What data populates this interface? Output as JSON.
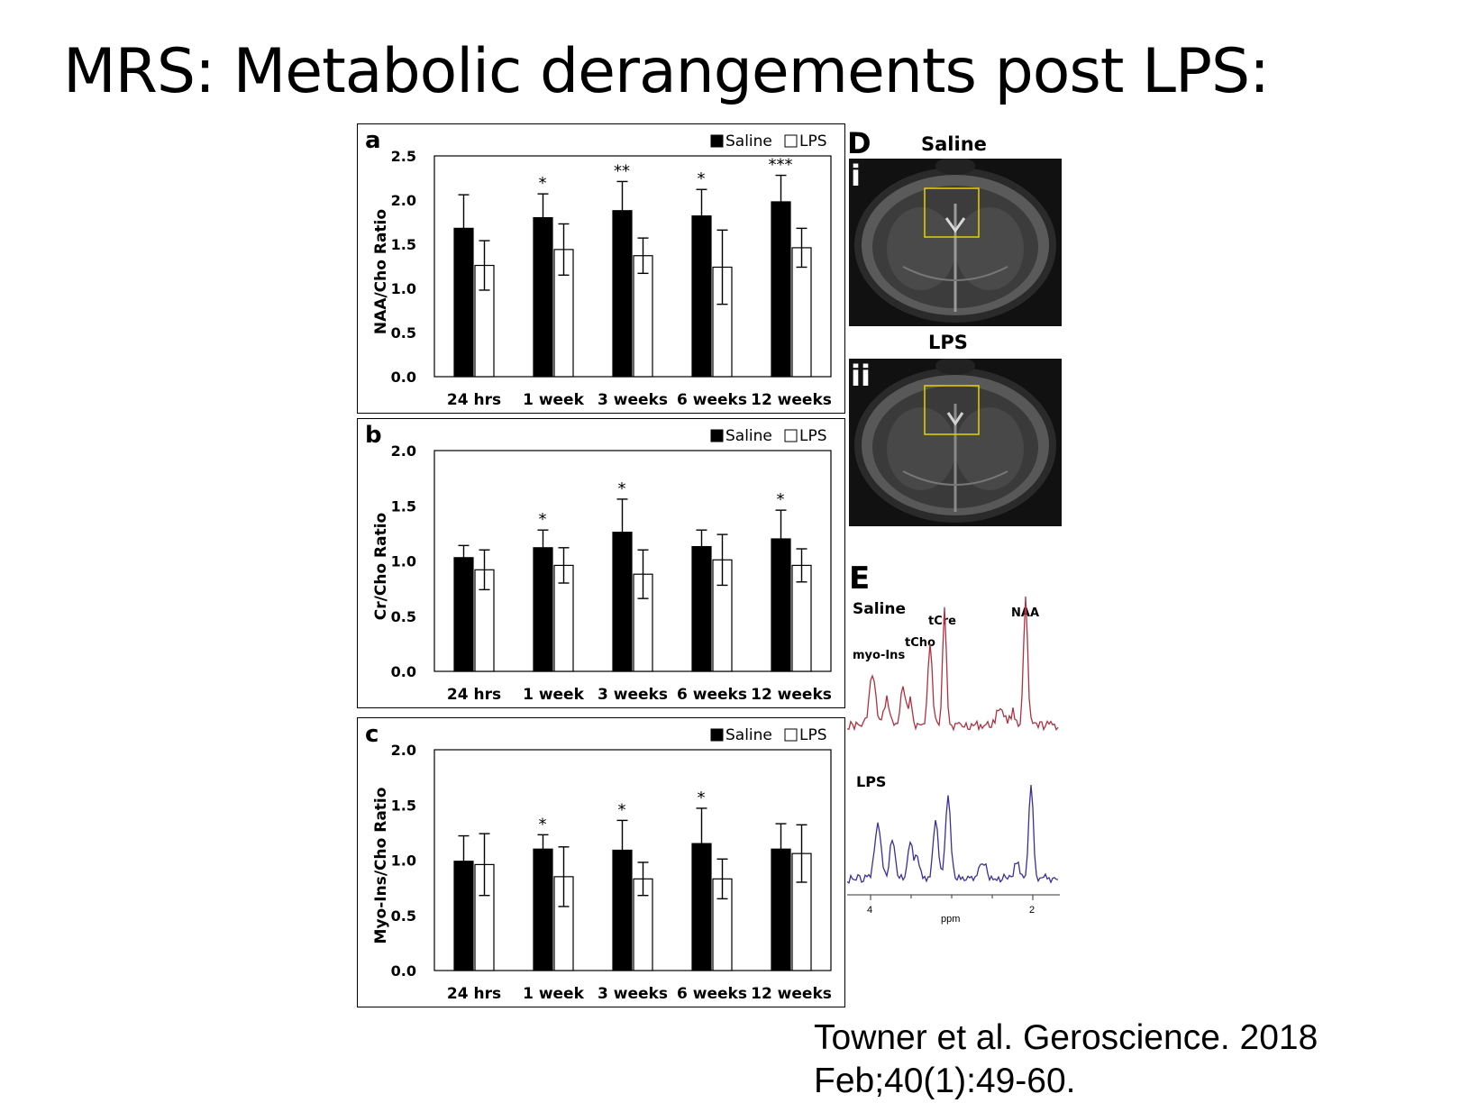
{
  "slide_title": "MRS: Metabolic derangements post LPS:",
  "citation": {
    "line1": "Towner  et al. Geroscience. 2018",
    "line2": "Feb;40(1):49-60."
  },
  "colors": {
    "saline": "#000000",
    "lps": "#ffffff",
    "saline_spectrum": "#b03040",
    "lps_spectrum": "#3a2f9a",
    "roi_box": "#e8d000"
  },
  "chart_data": [
    {
      "type": "bar",
      "panel": "a",
      "ylabel": "NAA/Cho Ratio",
      "ylim": [
        0,
        2.5
      ],
      "yticks": [
        "0.0",
        "0.5",
        "1.0",
        "1.5",
        "2.0",
        "2.5"
      ],
      "categories": [
        "24 hrs",
        "1 week",
        "3 weeks",
        "6 weeks",
        "12 weeks"
      ],
      "legend": [
        "Saline",
        "LPS"
      ],
      "legend_position": "top-right",
      "series": [
        {
          "name": "Saline",
          "values": [
            1.68,
            1.8,
            1.88,
            1.82,
            1.98
          ],
          "errors": [
            0.38,
            0.27,
            0.33,
            0.3,
            0.3
          ]
        },
        {
          "name": "LPS",
          "values": [
            1.26,
            1.44,
            1.37,
            1.24,
            1.46
          ],
          "errors": [
            0.28,
            0.29,
            0.2,
            0.42,
            0.22
          ]
        }
      ],
      "significance": [
        "",
        "*",
        "**",
        "*",
        "***"
      ]
    },
    {
      "type": "bar",
      "panel": "b",
      "ylabel": "Cr/Cho Ratio",
      "ylim": [
        0,
        2.0
      ],
      "yticks": [
        "0.0",
        "0.5",
        "1.0",
        "1.5",
        "2.0"
      ],
      "categories": [
        "24 hrs",
        "1 week",
        "3 weeks",
        "6 weeks",
        "12 weeks"
      ],
      "legend": [
        "Saline",
        "LPS"
      ],
      "legend_position": "top-right",
      "series": [
        {
          "name": "Saline",
          "values": [
            1.03,
            1.12,
            1.26,
            1.13,
            1.2
          ],
          "errors": [
            0.11,
            0.16,
            0.3,
            0.15,
            0.26
          ]
        },
        {
          "name": "LPS",
          "values": [
            0.92,
            0.96,
            0.88,
            1.01,
            0.96
          ],
          "errors": [
            0.18,
            0.16,
            0.22,
            0.23,
            0.15
          ]
        }
      ],
      "significance": [
        "",
        "*",
        "*",
        "",
        "*"
      ]
    },
    {
      "type": "bar",
      "panel": "c",
      "ylabel": "Myo-Ins/Cho Ratio",
      "ylim": [
        0,
        2.0
      ],
      "yticks": [
        "0.0",
        "0.5",
        "1.0",
        "1.5",
        "2.0"
      ],
      "categories": [
        "24 hrs",
        "1 week",
        "3 weeks",
        "6 weeks",
        "12 weeks"
      ],
      "legend": [
        "Saline",
        "LPS"
      ],
      "legend_position": "top-right",
      "series": [
        {
          "name": "Saline",
          "values": [
            0.99,
            1.1,
            1.09,
            1.15,
            1.1
          ],
          "errors": [
            0.23,
            0.13,
            0.27,
            0.32,
            0.23
          ]
        },
        {
          "name": "LPS",
          "values": [
            0.96,
            0.85,
            0.83,
            0.83,
            1.06
          ],
          "errors": [
            0.28,
            0.27,
            0.15,
            0.18,
            0.26
          ]
        }
      ],
      "significance": [
        "",
        "*",
        "*",
        "*",
        ""
      ]
    }
  ],
  "panel_d": {
    "label": "D",
    "images": [
      {
        "title": "Saline",
        "roman": "i"
      },
      {
        "title": "LPS",
        "roman": "ii"
      }
    ]
  },
  "panel_e": {
    "label": "E",
    "saline_label": "Saline",
    "lps_label": "LPS",
    "peak_labels": {
      "myo_ins": "myo-Ins",
      "tcho": "tCho",
      "tcre": "tCre",
      "naa": "NAA"
    },
    "axis_ticks": [
      "4",
      "2"
    ],
    "xlabel": "ppm"
  }
}
